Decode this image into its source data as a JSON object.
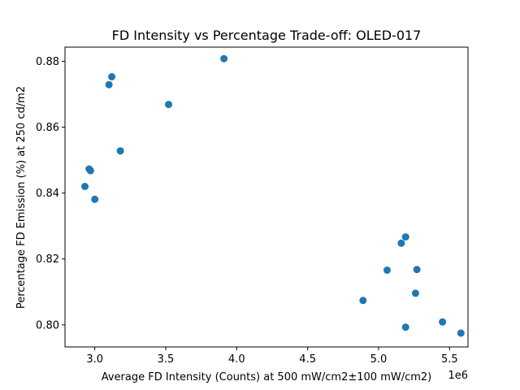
{
  "chart_data": {
    "type": "scatter",
    "title": "FD Intensity vs Percentage Trade-off: OLED-017",
    "xlabel": "Average FD Intensity (Counts) at 500 mW/cm2±100 mW/cm2)",
    "ylabel": "Percentage FD Emission (%) at 250 cd/m2",
    "x_offset_label": "1e6",
    "xlim": [
      2.79,
      5.63
    ],
    "ylim": [
      0.7933,
      0.8843
    ],
    "xticks": [
      3.0,
      3.5,
      4.0,
      4.5,
      5.0,
      5.5
    ],
    "xtick_labels": [
      "3.0",
      "3.5",
      "4.0",
      "4.5",
      "5.0",
      "5.5"
    ],
    "yticks": [
      0.8,
      0.82,
      0.84,
      0.86,
      0.88
    ],
    "ytick_labels": [
      "0.80",
      "0.82",
      "0.84",
      "0.86",
      "0.88"
    ],
    "grid": false,
    "marker_color": "#1f77b4",
    "points": [
      {
        "x": 3.91,
        "y": 0.8808
      },
      {
        "x": 3.12,
        "y": 0.8753
      },
      {
        "x": 3.1,
        "y": 0.8729
      },
      {
        "x": 3.52,
        "y": 0.8669
      },
      {
        "x": 3.18,
        "y": 0.8528
      },
      {
        "x": 2.96,
        "y": 0.8473
      },
      {
        "x": 2.97,
        "y": 0.8468
      },
      {
        "x": 2.93,
        "y": 0.842
      },
      {
        "x": 3.0,
        "y": 0.8381
      },
      {
        "x": 5.19,
        "y": 0.8267
      },
      {
        "x": 5.16,
        "y": 0.8248
      },
      {
        "x": 5.06,
        "y": 0.8166
      },
      {
        "x": 5.27,
        "y": 0.8168
      },
      {
        "x": 5.26,
        "y": 0.8096
      },
      {
        "x": 4.89,
        "y": 0.8074
      },
      {
        "x": 5.45,
        "y": 0.8009
      },
      {
        "x": 5.19,
        "y": 0.7993
      },
      {
        "x": 5.58,
        "y": 0.7975
      }
    ]
  }
}
